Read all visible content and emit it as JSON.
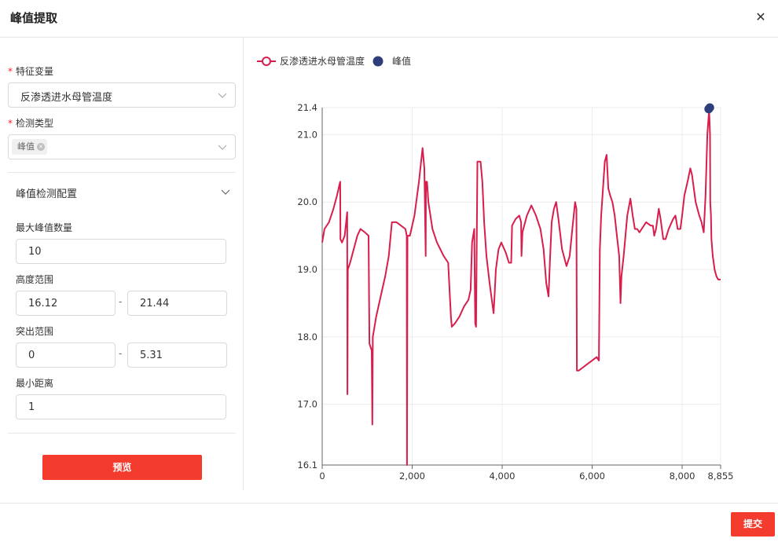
{
  "dialog": {
    "title": "峰值提取"
  },
  "form": {
    "feature_var": {
      "label": "特征变量",
      "value": "反渗透进水母管温度"
    },
    "detect_type": {
      "label": "检测类型",
      "tag": "峰值"
    },
    "config_section": {
      "title": "峰值检测配置"
    },
    "max_peaks": {
      "label": "最大峰值数量",
      "value": "10"
    },
    "height_range": {
      "label": "高度范围",
      "min": "16.12",
      "max": "21.44"
    },
    "prominence_range": {
      "label": "突出范围",
      "min": "0",
      "max": "5.31"
    },
    "min_distance": {
      "label": "最小距离",
      "value": "1"
    },
    "range_separator": "-"
  },
  "buttons": {
    "preview": "预览",
    "submit": "提交"
  },
  "chart_data": {
    "type": "line",
    "legend_placement": "top-left",
    "series": [
      {
        "name": "反渗透进水母管温度",
        "color": "#d81e4c"
      },
      {
        "name": "峰值",
        "color": "#2e3e7a"
      }
    ],
    "xlim": [
      0,
      8855
    ],
    "ylim": [
      16.1,
      21.4
    ],
    "x_ticks": [
      0,
      2000,
      4000,
      6000,
      8000,
      8855
    ],
    "x_tick_labels": [
      "0",
      "2,000",
      "4,000",
      "6,000",
      "8,000",
      "8,855"
    ],
    "y_ticks": [
      16.1,
      17.0,
      18.0,
      19.0,
      20.0,
      21.0,
      21.4
    ],
    "y_tick_labels": [
      "16.1",
      "17.0",
      "18.0",
      "19.0",
      "20.0",
      "21.0",
      "21.4"
    ],
    "grid": true,
    "line_points": [
      [
        0,
        19.4
      ],
      [
        50,
        19.6
      ],
      [
        150,
        19.7
      ],
      [
        250,
        19.9
      ],
      [
        330,
        20.1
      ],
      [
        380,
        20.25
      ],
      [
        400,
        20.3
      ],
      [
        405,
        19.45
      ],
      [
        440,
        19.4
      ],
      [
        500,
        19.5
      ],
      [
        540,
        19.75
      ],
      [
        555,
        19.85
      ],
      [
        560,
        17.15
      ],
      [
        570,
        19.0
      ],
      [
        620,
        19.1
      ],
      [
        700,
        19.3
      ],
      [
        780,
        19.5
      ],
      [
        850,
        19.6
      ],
      [
        950,
        19.55
      ],
      [
        1030,
        19.5
      ],
      [
        1050,
        17.9
      ],
      [
        1100,
        17.8
      ],
      [
        1115,
        16.7
      ],
      [
        1125,
        18.0
      ],
      [
        1200,
        18.3
      ],
      [
        1300,
        18.6
      ],
      [
        1400,
        18.9
      ],
      [
        1480,
        19.2
      ],
      [
        1550,
        19.7
      ],
      [
        1650,
        19.7
      ],
      [
        1750,
        19.65
      ],
      [
        1850,
        19.6
      ],
      [
        1880,
        19.5
      ],
      [
        1885,
        16.1
      ],
      [
        1895,
        19.5
      ],
      [
        1950,
        19.5
      ],
      [
        2050,
        19.8
      ],
      [
        2150,
        20.3
      ],
      [
        2230,
        20.8
      ],
      [
        2270,
        20.5
      ],
      [
        2300,
        19.2
      ],
      [
        2305,
        20.3
      ],
      [
        2330,
        20.3
      ],
      [
        2360,
        20.0
      ],
      [
        2450,
        19.6
      ],
      [
        2550,
        19.4
      ],
      [
        2700,
        19.2
      ],
      [
        2800,
        19.1
      ],
      [
        2860,
        18.3
      ],
      [
        2880,
        18.15
      ],
      [
        2950,
        18.2
      ],
      [
        3050,
        18.3
      ],
      [
        3150,
        18.45
      ],
      [
        3250,
        18.55
      ],
      [
        3300,
        18.7
      ],
      [
        3330,
        19.4
      ],
      [
        3380,
        19.6
      ],
      [
        3400,
        18.2
      ],
      [
        3420,
        18.15
      ],
      [
        3450,
        20.6
      ],
      [
        3520,
        20.6
      ],
      [
        3560,
        20.3
      ],
      [
        3600,
        19.7
      ],
      [
        3650,
        19.2
      ],
      [
        3720,
        18.8
      ],
      [
        3780,
        18.5
      ],
      [
        3810,
        18.35
      ],
      [
        3830,
        18.6
      ],
      [
        3860,
        19.0
      ],
      [
        3920,
        19.3
      ],
      [
        3980,
        19.4
      ],
      [
        4080,
        19.25
      ],
      [
        4150,
        19.1
      ],
      [
        4200,
        19.1
      ],
      [
        4220,
        19.65
      ],
      [
        4300,
        19.75
      ],
      [
        4380,
        19.8
      ],
      [
        4420,
        19.7
      ],
      [
        4430,
        19.2
      ],
      [
        4450,
        19.55
      ],
      [
        4550,
        19.8
      ],
      [
        4650,
        19.95
      ],
      [
        4750,
        19.8
      ],
      [
        4850,
        19.6
      ],
      [
        4920,
        19.3
      ],
      [
        4980,
        18.8
      ],
      [
        5030,
        18.6
      ],
      [
        5060,
        19.1
      ],
      [
        5100,
        19.7
      ],
      [
        5150,
        19.9
      ],
      [
        5200,
        20.0
      ],
      [
        5250,
        19.75
      ],
      [
        5330,
        19.3
      ],
      [
        5430,
        19.05
      ],
      [
        5500,
        19.2
      ],
      [
        5560,
        19.6
      ],
      [
        5620,
        20.0
      ],
      [
        5650,
        19.9
      ],
      [
        5660,
        17.5
      ],
      [
        5700,
        17.5
      ],
      [
        5800,
        17.55
      ],
      [
        5900,
        17.6
      ],
      [
        6000,
        17.65
      ],
      [
        6100,
        17.7
      ],
      [
        6150,
        17.65
      ],
      [
        6170,
        19.3
      ],
      [
        6200,
        19.8
      ],
      [
        6280,
        20.6
      ],
      [
        6320,
        20.7
      ],
      [
        6360,
        20.2
      ],
      [
        6400,
        20.1
      ],
      [
        6450,
        20.0
      ],
      [
        6500,
        19.8
      ],
      [
        6550,
        19.5
      ],
      [
        6600,
        19.2
      ],
      [
        6630,
        18.5
      ],
      [
        6650,
        18.9
      ],
      [
        6700,
        19.2
      ],
      [
        6780,
        19.8
      ],
      [
        6850,
        20.05
      ],
      [
        6900,
        19.8
      ],
      [
        6950,
        19.6
      ],
      [
        7000,
        19.6
      ],
      [
        7050,
        19.55
      ],
      [
        7100,
        19.6
      ],
      [
        7200,
        19.7
      ],
      [
        7300,
        19.65
      ],
      [
        7350,
        19.65
      ],
      [
        7380,
        19.5
      ],
      [
        7420,
        19.6
      ],
      [
        7480,
        19.9
      ],
      [
        7520,
        19.75
      ],
      [
        7580,
        19.45
      ],
      [
        7630,
        19.45
      ],
      [
        7700,
        19.6
      ],
      [
        7800,
        19.75
      ],
      [
        7850,
        19.8
      ],
      [
        7900,
        19.6
      ],
      [
        7960,
        19.6
      ],
      [
        8000,
        19.8
      ],
      [
        8050,
        20.1
      ],
      [
        8120,
        20.3
      ],
      [
        8180,
        20.5
      ],
      [
        8220,
        20.4
      ],
      [
        8300,
        20.0
      ],
      [
        8380,
        19.8
      ],
      [
        8430,
        19.7
      ],
      [
        8480,
        19.55
      ],
      [
        8520,
        20.1
      ],
      [
        8560,
        21.0
      ],
      [
        8580,
        21.2
      ],
      [
        8600,
        21.36
      ],
      [
        8620,
        21.0
      ],
      [
        8625,
        20.0
      ],
      [
        8640,
        19.8
      ],
      [
        8650,
        19.45
      ],
      [
        8680,
        19.2
      ],
      [
        8720,
        19.0
      ],
      [
        8760,
        18.9
      ],
      [
        8800,
        18.85
      ],
      [
        8855,
        18.85
      ]
    ],
    "peak_points": [
      [
        8590,
        21.38
      ],
      [
        8615,
        21.4
      ]
    ]
  }
}
